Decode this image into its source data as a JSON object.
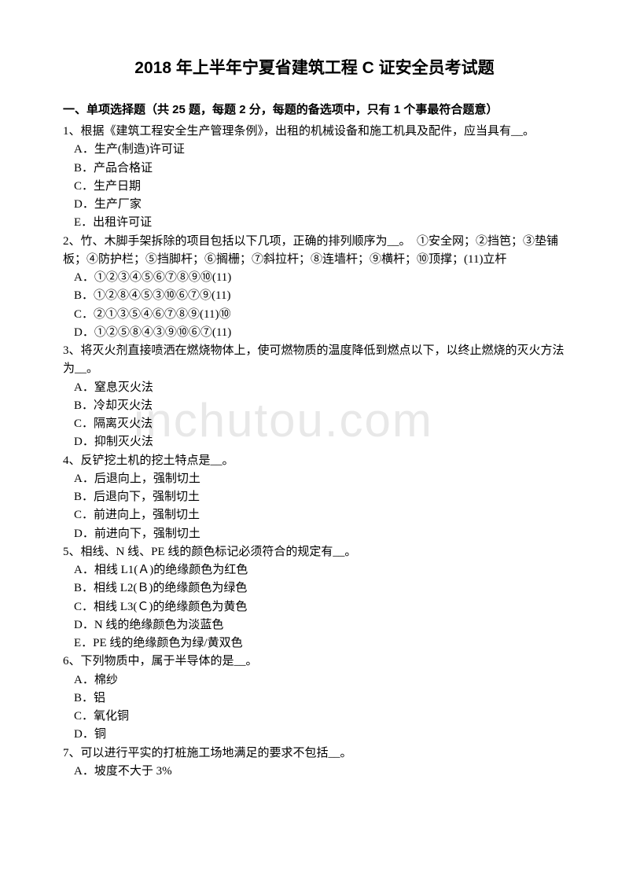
{
  "title": "2018 年上半年宁夏省建筑工程 C 证安全员考试题",
  "section_header": "一、单项选择题（共 25 题，每题 2 分，每题的备选项中，只有 1 个事最符合题意）",
  "watermark": "inchutou.com",
  "questions": [
    {
      "num": "1",
      "text": "、根据《建筑工程安全生产管理条例》，出租的机械设备和施工机具及配件，应当具有__。",
      "options": [
        "A．生产(制造)许可证",
        "B．产品合格证",
        "C．生产日期",
        "D．生产厂家",
        "E．出租许可证"
      ]
    },
    {
      "num": "2",
      "text": "、竹、木脚手架拆除的项目包括以下几项，正确的排列顺序为__。　①安全网；②挡笆；③垫铺板；④防护栏；⑤挡脚杆；⑥搁栅；⑦斜拉杆；⑧连墙杆；⑨横杆；⑩顶撑；(11)立杆",
      "options": [
        "A．①②③④⑤⑥⑦⑧⑨⑩(11)",
        "B．①②⑧④⑤③⑩⑥⑦⑨(11)",
        "C．②①③⑤④⑥⑦⑧⑨(11)⑩",
        "D．①②⑤⑧④③⑨⑩⑥⑦(11)"
      ]
    },
    {
      "num": "3",
      "text": "、将灭火剂直接喷洒在燃烧物体上，使可燃物质的温度降低到燃点以下，以终止燃烧的灭火方法为__。",
      "options": [
        "A．窒息灭火法",
        "B．冷却灭火法",
        "C．隔离灭火法",
        "D．抑制灭火法"
      ]
    },
    {
      "num": "4",
      "text": "、反铲挖土机的挖土特点是__。",
      "options": [
        "A．后退向上，强制切土",
        "B．后退向下，强制切土",
        "C．前进向上，强制切土",
        "D．前进向下，强制切土"
      ]
    },
    {
      "num": "5",
      "text": "、相线、N 线、PE 线的颜色标记必须符合的规定有__。",
      "options": [
        "A．相线 L1(Ａ)的绝缘颜色为红色",
        "B．相线 L2(Ｂ)的绝缘颜色为绿色",
        "C．相线 L3(Ｃ)的绝缘颜色为黄色",
        "D．N 线的绝缘颜色为淡蓝色",
        "E．PE 线的绝缘颜色为绿/黄双色"
      ]
    },
    {
      "num": "6",
      "text": "、下列物质中，属于半导体的是__。",
      "options": [
        "A．棉纱",
        "B．铝",
        "C．氧化铜",
        "D．铜"
      ]
    },
    {
      "num": "7",
      "text": "、可以进行平实的打桩施工场地满足的要求不包括__。",
      "options": [
        "A．坡度不大于 3%"
      ]
    }
  ]
}
